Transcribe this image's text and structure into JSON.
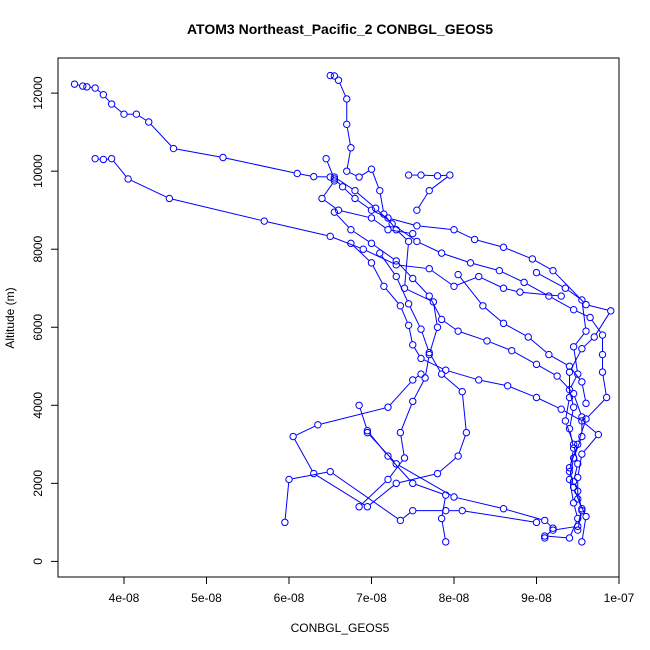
{
  "chart_data": {
    "type": "scatter",
    "title": "ATOM3 Northeast_Pacific_2 CONBGL_GEOS5",
    "xlabel": "CONBGL_GEOS5",
    "ylabel": "Altitude (m)",
    "xlim": [
      3.2e-08,
      1e-07
    ],
    "ylim": [
      -400,
      12900
    ],
    "x_ticks": [
      4e-08,
      5e-08,
      6e-08,
      7e-08,
      8e-08,
      9e-08,
      1e-07
    ],
    "x_tick_labels": [
      "4e-08",
      "5e-08",
      "6e-08",
      "7e-08",
      "8e-08",
      "9e-08",
      "1e-07"
    ],
    "y_ticks": [
      0,
      2000,
      4000,
      6000,
      8000,
      10000,
      12000
    ],
    "y_tick_labels": [
      "0",
      "2000",
      "4000",
      "6000",
      "8000",
      "10000",
      "12000"
    ],
    "grid": false,
    "color": "#0000ff",
    "series": [
      {
        "points": [
          [
            3.4e-08,
            12230
          ],
          [
            3.5e-08,
            12180
          ],
          [
            3.55e-08,
            12160
          ],
          [
            3.65e-08,
            12130
          ],
          [
            3.75e-08,
            11960
          ],
          [
            3.85e-08,
            11720
          ],
          [
            4e-08,
            11460
          ],
          [
            4.15e-08,
            11460
          ],
          [
            4.3e-08,
            11260
          ],
          [
            4.6e-08,
            10580
          ],
          [
            5.2e-08,
            10350
          ],
          [
            6.1e-08,
            9940
          ],
          [
            6.3e-08,
            9860
          ],
          [
            6.5e-08,
            9850
          ],
          [
            6.55e-08,
            9750
          ],
          [
            6.4e-08,
            9300
          ],
          [
            6.6e-08,
            9000
          ],
          [
            7e-08,
            8800
          ],
          [
            7.2e-08,
            8500
          ],
          [
            7.5e-08,
            8400
          ]
        ]
      },
      {
        "points": [
          [
            3.65e-08,
            10320
          ],
          [
            3.75e-08,
            10300
          ],
          [
            3.85e-08,
            10320
          ],
          [
            4.05e-08,
            9800
          ],
          [
            4.55e-08,
            9300
          ],
          [
            5.7e-08,
            8720
          ],
          [
            6.5e-08,
            8330
          ],
          [
            6.9e-08,
            8000
          ],
          [
            7.3e-08,
            7600
          ],
          [
            7.7e-08,
            7500
          ],
          [
            8e-08,
            7050
          ],
          [
            8.3e-08,
            7300
          ],
          [
            8.6e-08,
            7000
          ],
          [
            8.8e-08,
            6900
          ],
          [
            9.3e-08,
            6800
          ]
        ]
      },
      {
        "points": [
          [
            6.5e-08,
            12450
          ],
          [
            6.55e-08,
            12440
          ],
          [
            6.6e-08,
            12330
          ],
          [
            6.7e-08,
            11850
          ],
          [
            6.7e-08,
            11200
          ],
          [
            6.75e-08,
            10600
          ],
          [
            6.7e-08,
            10000
          ],
          [
            6.85e-08,
            9850
          ],
          [
            7e-08,
            10050
          ],
          [
            7.1e-08,
            9500
          ],
          [
            7.15e-08,
            8900
          ],
          [
            7.3e-08,
            8500
          ],
          [
            7.45e-08,
            8200
          ],
          [
            7.4e-08,
            7000
          ],
          [
            7.75e-08,
            6650
          ],
          [
            7.8e-08,
            6000
          ],
          [
            7.7e-08,
            5300
          ],
          [
            7.65e-08,
            4700
          ],
          [
            7.5e-08,
            4100
          ],
          [
            7.35e-08,
            3300
          ],
          [
            7.4e-08,
            2650
          ],
          [
            7.2e-08,
            2100
          ],
          [
            6.85e-08,
            1400
          ]
        ]
      },
      {
        "points": [
          [
            6.45e-08,
            10320
          ],
          [
            6.55e-08,
            9800
          ],
          [
            6.65e-08,
            9600
          ],
          [
            6.8e-08,
            9300
          ],
          [
            7e-08,
            9000
          ],
          [
            7.2e-08,
            8800
          ],
          [
            7.55e-08,
            8600
          ],
          [
            8e-08,
            8500
          ],
          [
            8.25e-08,
            8250
          ],
          [
            8.6e-08,
            8050
          ],
          [
            8.95e-08,
            7750
          ],
          [
            9.2e-08,
            7450
          ],
          [
            9.6e-08,
            6580
          ],
          [
            9.9e-08,
            6420
          ],
          [
            9.7e-08,
            5750
          ],
          [
            9.55e-08,
            5450
          ],
          [
            9.4e-08,
            4850
          ],
          [
            9.4e-08,
            4200
          ],
          [
            9.35e-08,
            3600
          ],
          [
            9.45e-08,
            3000
          ],
          [
            9.5e-08,
            2500
          ],
          [
            9.45e-08,
            2050
          ],
          [
            9.5e-08,
            1800
          ],
          [
            9.55e-08,
            1300
          ],
          [
            9.5e-08,
            800
          ]
        ]
      },
      {
        "points": [
          [
            6.55e-08,
            8950
          ],
          [
            6.75e-08,
            8500
          ],
          [
            7e-08,
            8150
          ],
          [
            7.3e-08,
            7700
          ],
          [
            7.5e-08,
            7250
          ],
          [
            7.7e-08,
            6800
          ],
          [
            7.85e-08,
            6200
          ],
          [
            8.05e-08,
            5900
          ],
          [
            8.4e-08,
            5650
          ],
          [
            8.7e-08,
            5400
          ],
          [
            9e-08,
            5050
          ],
          [
            9.25e-08,
            4750
          ],
          [
            9.45e-08,
            4300
          ],
          [
            9.55e-08,
            3700
          ],
          [
            9.55e-08,
            3200
          ],
          [
            9.45e-08,
            2650
          ],
          [
            9.4e-08,
            2100
          ],
          [
            9.45e-08,
            1500
          ],
          [
            9.5e-08,
            1100
          ],
          [
            9.4e-08,
            600
          ],
          [
            9.1e-08,
            650
          ]
        ]
      },
      {
        "points": [
          [
            6.75e-08,
            8150
          ],
          [
            7e-08,
            7650
          ],
          [
            7.15e-08,
            7050
          ],
          [
            7.35e-08,
            6550
          ],
          [
            7.45e-08,
            6050
          ],
          [
            7.5e-08,
            5550
          ],
          [
            7.6e-08,
            5200
          ],
          [
            7.9e-08,
            4900
          ],
          [
            8.3e-08,
            4650
          ],
          [
            8.65e-08,
            4500
          ],
          [
            9e-08,
            4200
          ],
          [
            9.3e-08,
            3900
          ],
          [
            9.55e-08,
            3600
          ],
          [
            9.75e-08,
            3250
          ],
          [
            9.55e-08,
            2750
          ],
          [
            9.5e-08,
            2150
          ],
          [
            9.5e-08,
            1600
          ],
          [
            9.6e-08,
            1150
          ],
          [
            9.55e-08,
            500
          ]
        ]
      },
      {
        "points": [
          [
            6.55e-08,
            9850
          ],
          [
            6.8e-08,
            9500
          ],
          [
            7.05e-08,
            9050
          ],
          [
            7.25e-08,
            8650
          ],
          [
            7.55e-08,
            8200
          ],
          [
            7.85e-08,
            7900
          ],
          [
            8.2e-08,
            7650
          ],
          [
            8.55e-08,
            7450
          ],
          [
            8.85e-08,
            7150
          ],
          [
            9.15e-08,
            6800
          ],
          [
            9.45e-08,
            6450
          ],
          [
            9.65e-08,
            6250
          ],
          [
            9.8e-08,
            5800
          ],
          [
            9.8e-08,
            5300
          ],
          [
            9.8e-08,
            4850
          ],
          [
            9.85e-08,
            4200
          ],
          [
            9.6e-08,
            3650
          ],
          [
            9.5e-08,
            3000
          ],
          [
            9.4e-08,
            2400
          ],
          [
            9.45e-08,
            1900
          ],
          [
            9.55e-08,
            1350
          ],
          [
            9.5e-08,
            900
          ],
          [
            9.2e-08,
            800
          ]
        ]
      },
      {
        "points": [
          [
            7.1e-08,
            7900
          ],
          [
            7.3e-08,
            7300
          ],
          [
            7.45e-08,
            6600
          ],
          [
            7.6e-08,
            5950
          ],
          [
            7.7e-08,
            5350
          ],
          [
            7.85e-08,
            4800
          ],
          [
            8.1e-08,
            4350
          ],
          [
            8.15e-08,
            3300
          ],
          [
            8.05e-08,
            2700
          ],
          [
            7.8e-08,
            2250
          ],
          [
            7.3e-08,
            2000
          ],
          [
            6.95e-08,
            1400
          ],
          [
            6.3e-08,
            2250
          ],
          [
            6.05e-08,
            3200
          ],
          [
            6.35e-08,
            3500
          ],
          [
            7.2e-08,
            3950
          ],
          [
            7.5e-08,
            4650
          ],
          [
            7.6e-08,
            4800
          ]
        ]
      },
      {
        "points": [
          [
            6.85e-08,
            4000
          ],
          [
            6.95e-08,
            3350
          ],
          [
            7.2e-08,
            2700
          ],
          [
            7.5e-08,
            2000
          ],
          [
            7.9e-08,
            1700
          ],
          [
            7.85e-08,
            1100
          ],
          [
            7.9e-08,
            500
          ]
        ]
      },
      {
        "points": [
          [
            6.95e-08,
            3300
          ],
          [
            7.3e-08,
            2500
          ],
          [
            8e-08,
            1650
          ],
          [
            8.6e-08,
            1350
          ],
          [
            9.1e-08,
            1050
          ],
          [
            9.2e-08,
            850
          ],
          [
            9.1e-08,
            600
          ]
        ]
      },
      {
        "points": [
          [
            5.95e-08,
            1000
          ],
          [
            6e-08,
            2100
          ],
          [
            6.5e-08,
            2300
          ],
          [
            7.35e-08,
            1050
          ],
          [
            7.5e-08,
            1300
          ],
          [
            7.9e-08,
            1300
          ],
          [
            8.1e-08,
            1300
          ],
          [
            9e-08,
            1000
          ]
        ]
      },
      {
        "points": [
          [
            7.45e-08,
            9900
          ],
          [
            7.6e-08,
            9900
          ],
          [
            7.8e-08,
            9880
          ],
          [
            7.95e-08,
            9900
          ],
          [
            7.7e-08,
            9500
          ],
          [
            7.55e-08,
            9000
          ]
        ]
      },
      {
        "points": [
          [
            8.05e-08,
            7350
          ],
          [
            8.35e-08,
            6550
          ],
          [
            8.6e-08,
            6100
          ],
          [
            8.9e-08,
            5750
          ],
          [
            9.15e-08,
            5300
          ],
          [
            9.4e-08,
            5000
          ],
          [
            9.55e-08,
            4600
          ],
          [
            9.6e-08,
            4050
          ]
        ]
      },
      {
        "points": [
          [
            9e-08,
            7400
          ],
          [
            9.35e-08,
            7000
          ],
          [
            9.55e-08,
            6700
          ],
          [
            9.6e-08,
            5900
          ],
          [
            9.45e-08,
            5500
          ],
          [
            9.5e-08,
            4800
          ],
          [
            9.4e-08,
            4400
          ],
          [
            9.45e-08,
            3950
          ],
          [
            9.4e-08,
            3400
          ],
          [
            9.45e-08,
            2900
          ],
          [
            9.4e-08,
            2300
          ]
        ]
      }
    ]
  }
}
